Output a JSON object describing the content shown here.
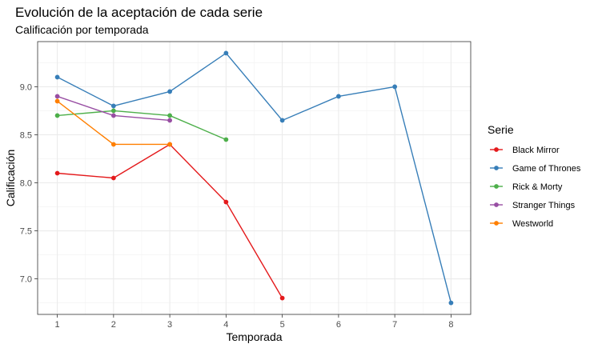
{
  "chart_data": {
    "type": "line",
    "title": "Evolución de la aceptación de cada serie",
    "subtitle": "Calificación por temporada",
    "xlabel": "Temporada",
    "ylabel": "Calificación",
    "x_ticks": [
      1,
      2,
      3,
      4,
      5,
      6,
      7,
      8
    ],
    "y_ticks": [
      7.0,
      7.5,
      8.0,
      8.5,
      9.0
    ],
    "x_tick_labels": [
      "1",
      "2",
      "3",
      "4",
      "5",
      "6",
      "7",
      "8"
    ],
    "y_tick_labels": [
      "7.0",
      "7.5",
      "8.0",
      "8.5",
      "9.0"
    ],
    "xlim": [
      0.65,
      8.35
    ],
    "ylim": [
      6.63,
      9.47
    ],
    "grid": true,
    "legend_title": "Serie",
    "legend_position": "right",
    "series": [
      {
        "name": "Black Mirror",
        "color": "#E41A1C",
        "x": [
          1,
          2,
          3,
          4,
          5
        ],
        "values": [
          8.1,
          8.05,
          8.4,
          7.8,
          6.8
        ]
      },
      {
        "name": "Game of Thrones",
        "color": "#377EB8",
        "x": [
          1,
          2,
          3,
          4,
          5,
          6,
          7,
          8
        ],
        "values": [
          9.1,
          8.8,
          8.95,
          9.35,
          8.65,
          8.9,
          9.0,
          6.75
        ]
      },
      {
        "name": "Rick & Morty",
        "color": "#4DAF4A",
        "x": [
          1,
          2,
          3,
          4
        ],
        "values": [
          8.7,
          8.75,
          8.7,
          8.45
        ]
      },
      {
        "name": "Stranger Things",
        "color": "#984EA3",
        "x": [
          1,
          2,
          3
        ],
        "values": [
          8.9,
          8.7,
          8.65
        ]
      },
      {
        "name": "Westworld",
        "color": "#FF7F00",
        "x": [
          1,
          2,
          3
        ],
        "values": [
          8.85,
          8.4,
          8.4
        ]
      }
    ]
  }
}
